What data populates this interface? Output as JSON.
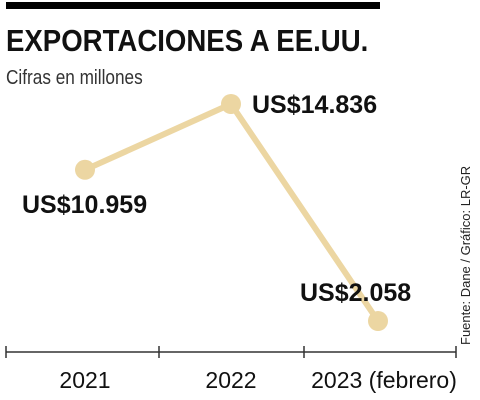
{
  "header": {
    "title": "EXPORTACIONES A EE.UU.",
    "subtitle": "Cifras en millones"
  },
  "source": "Fuente: Dane / Gráfico: LR-GR",
  "colors": {
    "line": "#ecd6a2",
    "marker": "#ecd6a2",
    "text": "#111111",
    "axis": "#333333"
  },
  "chart_data": {
    "type": "line",
    "categories": [
      "2021",
      "2022",
      "2023 (febrero)"
    ],
    "series": [
      {
        "values": [
          10959,
          14836,
          2058
        ],
        "labels": [
          "US$10.959",
          "US$14.836",
          "US$2.058"
        ]
      }
    ],
    "title": "EXPORTACIONES A EE.UU.",
    "subtitle": "Cifras en millones",
    "unit": "millones de US$",
    "xlabel": "",
    "ylabel": "",
    "grid": false,
    "legend": "none"
  }
}
